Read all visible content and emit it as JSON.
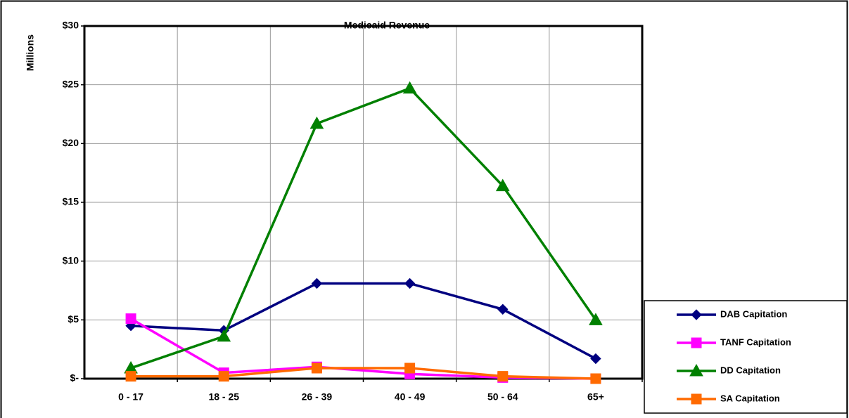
{
  "chart_data": {
    "type": "line",
    "title": "Medicaid Revenue",
    "y_label": "Millions",
    "categories": [
      "0 - 17",
      "18 - 25",
      "26 - 39",
      "40 - 49",
      "50 - 64",
      "65+"
    ],
    "series": [
      {
        "name": "DAB Capitation",
        "color": "#000080",
        "marker": "diamond",
        "values": [
          4.5,
          4.1,
          8.1,
          8.1,
          5.9,
          1.7
        ]
      },
      {
        "name": "TANF Capitation",
        "color": "#ff00ff",
        "marker": "square",
        "values": [
          5.1,
          0.5,
          1.0,
          0.4,
          0.1,
          0
        ]
      },
      {
        "name": "DD Capitation",
        "color": "#008000",
        "marker": "triangle",
        "values": [
          0.9,
          3.6,
          21.7,
          24.7,
          16.4,
          5.0
        ]
      },
      {
        "name": "SA Capitation",
        "color": "#ff6a00",
        "marker": "square",
        "values": [
          0.2,
          0.2,
          0.9,
          0.9,
          0.2,
          0
        ]
      }
    ],
    "ylim": [
      0,
      30
    ],
    "yticks": [
      {
        "value": 0,
        "label": "$-"
      },
      {
        "value": 5,
        "label": "$5"
      },
      {
        "value": 10,
        "label": "$10"
      },
      {
        "value": 15,
        "label": "$15"
      },
      {
        "value": 20,
        "label": "$20"
      },
      {
        "value": 25,
        "label": "$25"
      },
      {
        "value": 30,
        "label": "$30"
      }
    ],
    "grid": true,
    "legend": "lower right"
  }
}
